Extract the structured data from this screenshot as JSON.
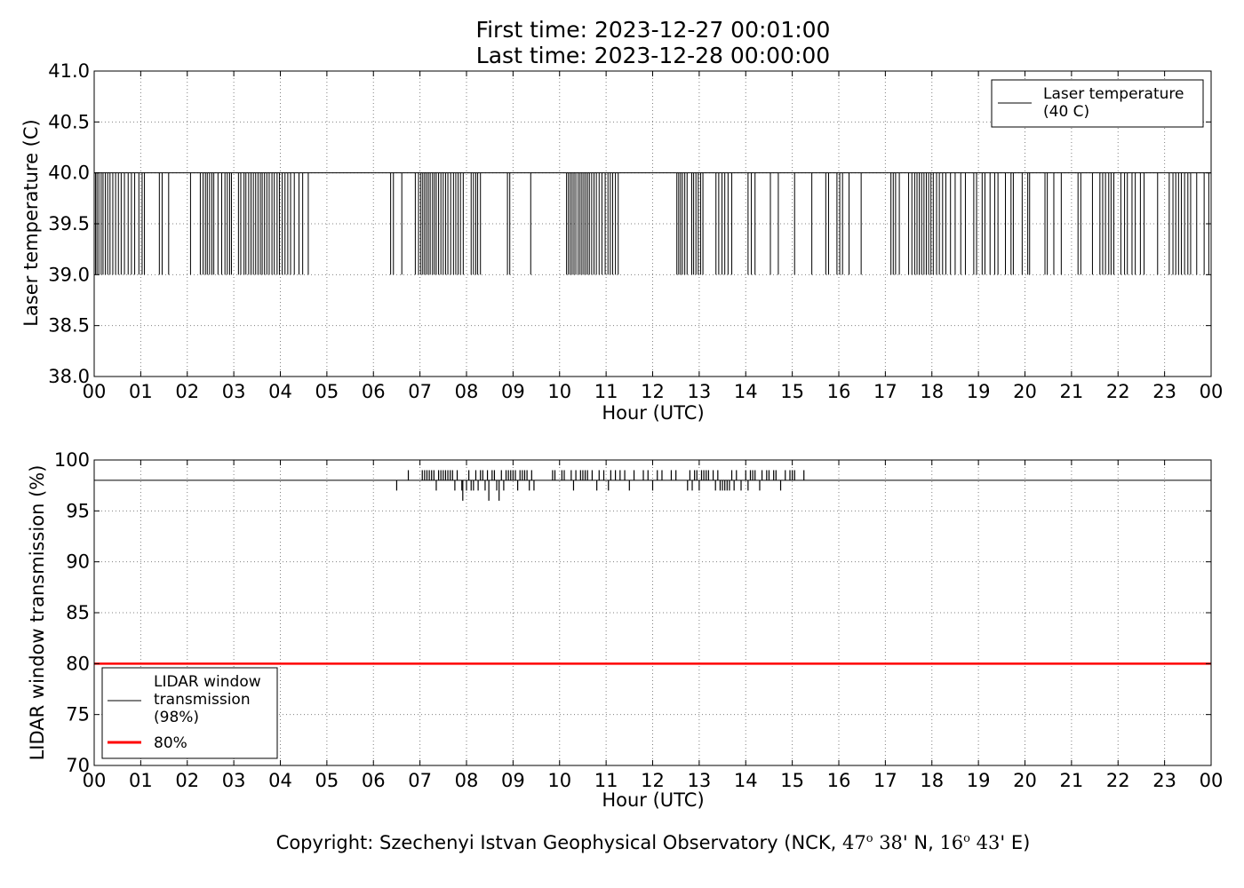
{
  "header": {
    "title_line1": "First time: 2023-12-27 00:01:00",
    "title_line2": "Last time: 2023-12-28 00:00:00"
  },
  "footer": {
    "prefix": "Copyright: Szechenyi Istvan Geophysical Observatory (NCK, ",
    "lat_deg": "47",
    "lat_deg_sup": "o",
    "lat_min": " 38",
    "lat_suffix": "' N, ",
    "lon_deg": "16",
    "lon_deg_sup": "o",
    "lon_min": " 43",
    "lon_suffix": "' E)"
  },
  "chart_data": [
    {
      "type": "line",
      "xlabel": "Hour (UTC)",
      "ylabel": "Laser temperature (C)",
      "xlim": [
        0,
        24
      ],
      "ylim": [
        38.0,
        41.0
      ],
      "xticks": [
        "00",
        "01",
        "02",
        "03",
        "04",
        "05",
        "06",
        "07",
        "08",
        "09",
        "10",
        "11",
        "12",
        "13",
        "14",
        "15",
        "16",
        "17",
        "18",
        "19",
        "20",
        "21",
        "22",
        "23",
        "00"
      ],
      "yticks": [
        "38.0",
        "38.5",
        "39.0",
        "39.5",
        "40.0",
        "40.5",
        "41.0"
      ],
      "grid": true,
      "legend_position": "top-right",
      "series": [
        {
          "name": "Laser temperature\n(40 C)",
          "color": "#000000",
          "baseline": 40.0,
          "dip_value": 39.0,
          "x_dips": [
            0.03,
            0.06,
            0.1,
            0.15,
            0.19,
            0.24,
            0.29,
            0.34,
            0.4,
            0.46,
            0.52,
            0.58,
            0.65,
            0.73,
            0.8,
            0.87,
            0.96,
            1.03,
            1.08,
            1.4,
            1.46,
            1.6,
            2.07,
            2.28,
            2.34,
            2.39,
            2.43,
            2.48,
            2.53,
            2.57,
            2.66,
            2.74,
            2.81,
            2.86,
            2.91,
            2.95,
            3.1,
            3.15,
            3.22,
            3.26,
            3.32,
            3.37,
            3.42,
            3.47,
            3.52,
            3.57,
            3.61,
            3.66,
            3.71,
            3.76,
            3.82,
            3.87,
            3.93,
            3.98,
            4.04,
            4.1,
            4.16,
            4.22,
            4.3,
            4.4,
            4.48,
            4.6,
            6.37,
            6.43,
            6.61,
            6.9,
            6.97,
            7.02,
            7.06,
            7.1,
            7.14,
            7.18,
            7.22,
            7.27,
            7.31,
            7.35,
            7.4,
            7.45,
            7.5,
            7.55,
            7.6,
            7.66,
            7.72,
            7.77,
            7.82,
            7.87,
            7.93,
            8.1,
            8.15,
            8.2,
            8.24,
            8.3,
            8.88,
            8.93,
            9.38,
            10.15,
            10.19,
            10.23,
            10.27,
            10.31,
            10.35,
            10.4,
            10.44,
            10.48,
            10.52,
            10.56,
            10.6,
            10.64,
            10.69,
            10.74,
            10.79,
            10.85,
            10.91,
            10.98,
            11.04,
            11.09,
            11.14,
            11.2,
            11.26,
            12.52,
            12.56,
            12.6,
            12.64,
            12.69,
            12.74,
            12.84,
            12.88,
            12.93,
            12.98,
            13.03,
            13.08,
            13.36,
            13.42,
            13.49,
            13.55,
            13.62,
            13.7,
            14.05,
            14.12,
            14.2,
            14.53,
            14.7,
            15.05,
            15.42,
            15.72,
            15.78,
            15.96,
            16.02,
            16.08,
            16.22,
            16.48,
            17.12,
            17.17,
            17.22,
            17.3,
            17.5,
            17.57,
            17.63,
            17.68,
            17.73,
            17.78,
            17.83,
            17.88,
            17.93,
            17.98,
            18.03,
            18.1,
            18.16,
            18.23,
            18.3,
            18.4,
            18.5,
            18.62,
            18.72,
            18.9,
            18.96,
            19.08,
            19.14,
            19.25,
            19.35,
            19.42,
            19.58,
            19.7,
            19.75,
            19.94,
            20.06,
            20.1,
            20.43,
            20.48,
            20.62,
            20.78,
            21.14,
            21.2,
            21.45,
            21.61,
            21.67,
            21.73,
            21.8,
            21.85,
            21.91,
            22.06,
            22.14,
            22.2,
            22.3,
            22.37,
            22.48,
            22.56,
            22.85,
            23.1,
            23.18,
            23.24,
            23.3,
            23.36,
            23.43,
            23.5,
            23.56,
            23.69,
            23.85,
            23.95
          ]
        }
      ]
    },
    {
      "type": "line",
      "xlabel": "Hour (UTC)",
      "ylabel": "LIDAR window transmission (%)",
      "xlim": [
        0,
        24
      ],
      "ylim": [
        70,
        100
      ],
      "xticks": [
        "00",
        "01",
        "02",
        "03",
        "04",
        "05",
        "06",
        "07",
        "08",
        "09",
        "10",
        "11",
        "12",
        "13",
        "14",
        "15",
        "16",
        "17",
        "18",
        "19",
        "20",
        "21",
        "22",
        "23",
        "00"
      ],
      "yticks": [
        "70",
        "75",
        "80",
        "85",
        "90",
        "95",
        "100"
      ],
      "grid": true,
      "legend_position": "bottom-left",
      "series": [
        {
          "name": "LIDAR window\ntransmission\n(98%)",
          "color": "#000000",
          "baseline": 98,
          "points": [
            [
              6.5,
              97
            ],
            [
              6.75,
              99
            ],
            [
              7.05,
              99
            ],
            [
              7.1,
              99
            ],
            [
              7.15,
              99
            ],
            [
              7.2,
              99
            ],
            [
              7.25,
              99
            ],
            [
              7.3,
              99
            ],
            [
              7.35,
              97
            ],
            [
              7.4,
              99
            ],
            [
              7.45,
              99
            ],
            [
              7.5,
              99
            ],
            [
              7.55,
              99
            ],
            [
              7.6,
              99
            ],
            [
              7.65,
              99
            ],
            [
              7.7,
              99
            ],
            [
              7.75,
              97
            ],
            [
              7.8,
              99
            ],
            [
              7.9,
              97
            ],
            [
              7.92,
              96
            ],
            [
              8.0,
              97
            ],
            [
              8.05,
              99
            ],
            [
              8.1,
              97
            ],
            [
              8.15,
              97
            ],
            [
              8.2,
              99
            ],
            [
              8.25,
              97
            ],
            [
              8.3,
              99
            ],
            [
              8.35,
              99
            ],
            [
              8.4,
              97
            ],
            [
              8.45,
              99
            ],
            [
              8.48,
              96
            ],
            [
              8.55,
              99
            ],
            [
              8.6,
              99
            ],
            [
              8.65,
              97
            ],
            [
              8.7,
              96
            ],
            [
              8.75,
              99
            ],
            [
              8.8,
              97
            ],
            [
              8.85,
              99
            ],
            [
              8.9,
              99
            ],
            [
              8.95,
              99
            ],
            [
              9.0,
              99
            ],
            [
              9.05,
              99
            ],
            [
              9.1,
              97
            ],
            [
              9.15,
              99
            ],
            [
              9.2,
              99
            ],
            [
              9.25,
              99
            ],
            [
              9.3,
              99
            ],
            [
              9.35,
              97
            ],
            [
              9.4,
              99
            ],
            [
              9.45,
              97
            ],
            [
              9.85,
              99
            ],
            [
              9.9,
              99
            ],
            [
              10.05,
              99
            ],
            [
              10.1,
              99
            ],
            [
              10.25,
              99
            ],
            [
              10.3,
              97
            ],
            [
              10.35,
              99
            ],
            [
              10.45,
              99
            ],
            [
              10.5,
              99
            ],
            [
              10.55,
              99
            ],
            [
              10.6,
              99
            ],
            [
              10.7,
              99
            ],
            [
              10.8,
              97
            ],
            [
              10.85,
              99
            ],
            [
              10.95,
              99
            ],
            [
              11.05,
              97
            ],
            [
              11.1,
              99
            ],
            [
              11.2,
              99
            ],
            [
              11.3,
              99
            ],
            [
              11.4,
              99
            ],
            [
              11.5,
              97
            ],
            [
              11.6,
              99
            ],
            [
              11.8,
              99
            ],
            [
              11.9,
              99
            ],
            [
              12.0,
              97
            ],
            [
              12.1,
              99
            ],
            [
              12.2,
              99
            ],
            [
              12.4,
              99
            ],
            [
              12.5,
              99
            ],
            [
              12.75,
              97
            ],
            [
              12.8,
              99
            ],
            [
              12.85,
              97
            ],
            [
              12.9,
              99
            ],
            [
              12.95,
              99
            ],
            [
              13.0,
              97
            ],
            [
              13.05,
              99
            ],
            [
              13.1,
              99
            ],
            [
              13.15,
              99
            ],
            [
              13.2,
              99
            ],
            [
              13.3,
              99
            ],
            [
              13.35,
              97
            ],
            [
              13.4,
              99
            ],
            [
              13.45,
              97
            ],
            [
              13.5,
              97
            ],
            [
              13.55,
              97
            ],
            [
              13.6,
              97
            ],
            [
              13.65,
              97
            ],
            [
              13.7,
              99
            ],
            [
              13.75,
              97
            ],
            [
              13.8,
              99
            ],
            [
              13.9,
              97
            ],
            [
              14.0,
              99
            ],
            [
              14.05,
              97
            ],
            [
              14.1,
              99
            ],
            [
              14.15,
              99
            ],
            [
              14.2,
              99
            ],
            [
              14.3,
              97
            ],
            [
              14.35,
              99
            ],
            [
              14.45,
              99
            ],
            [
              14.5,
              99
            ],
            [
              14.6,
              99
            ],
            [
              14.65,
              99
            ],
            [
              14.75,
              97
            ],
            [
              14.85,
              99
            ],
            [
              14.95,
              99
            ],
            [
              15.0,
              99
            ],
            [
              15.05,
              99
            ],
            [
              15.25,
              99
            ]
          ]
        },
        {
          "name": "80%",
          "color": "#ff0000",
          "constant": 80
        }
      ]
    }
  ]
}
